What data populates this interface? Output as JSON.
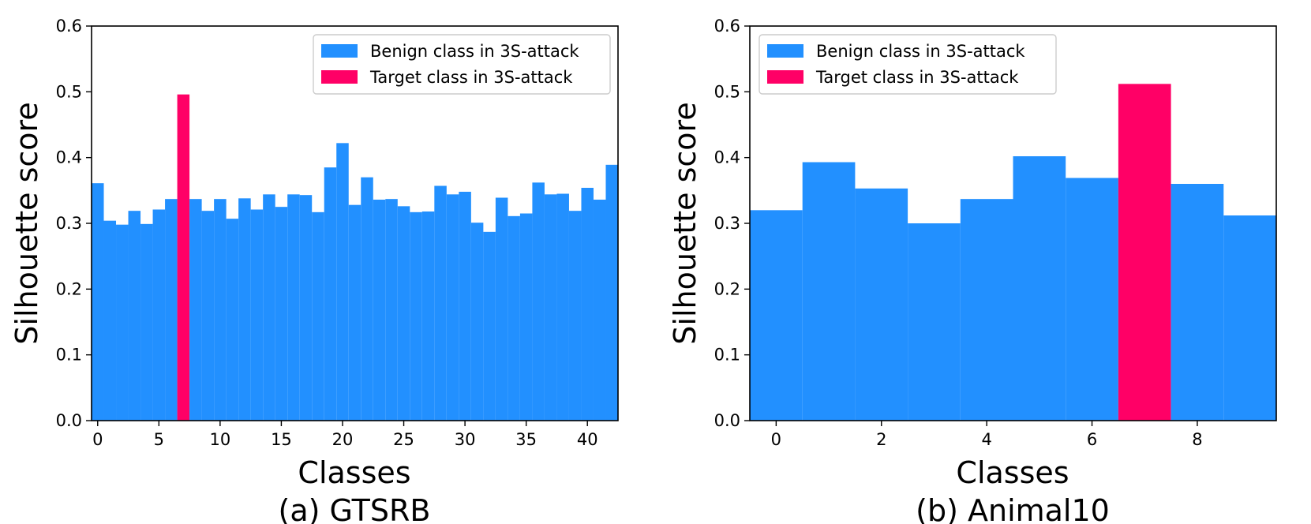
{
  "chart_data": [
    {
      "type": "bar",
      "caption": "(a) GTSRB",
      "xlabel": "Classes",
      "ylabel": "Silhouette score",
      "xlim": [
        -0.5,
        42.5
      ],
      "ylim": [
        0,
        0.6
      ],
      "xticks": [
        0,
        5,
        10,
        15,
        20,
        25,
        30,
        35,
        40
      ],
      "yticks": [
        0.0,
        0.1,
        0.2,
        0.3,
        0.4,
        0.5,
        0.6
      ],
      "target_class": 7,
      "categories": [
        0,
        1,
        2,
        3,
        4,
        5,
        6,
        7,
        8,
        9,
        10,
        11,
        12,
        13,
        14,
        15,
        16,
        17,
        18,
        19,
        20,
        21,
        22,
        23,
        24,
        25,
        26,
        27,
        28,
        29,
        30,
        31,
        32,
        33,
        34,
        35,
        36,
        37,
        38,
        39,
        40,
        41,
        42
      ],
      "values": [
        0.361,
        0.304,
        0.298,
        0.319,
        0.299,
        0.321,
        0.337,
        0.496,
        0.337,
        0.319,
        0.337,
        0.307,
        0.338,
        0.321,
        0.344,
        0.325,
        0.344,
        0.343,
        0.317,
        0.385,
        0.422,
        0.328,
        0.37,
        0.336,
        0.337,
        0.326,
        0.317,
        0.318,
        0.357,
        0.344,
        0.348,
        0.301,
        0.287,
        0.339,
        0.311,
        0.315,
        0.362,
        0.344,
        0.345,
        0.319,
        0.354,
        0.336,
        0.389
      ],
      "legend": [
        "Benign class in 3S-attack",
        "Target class in 3S-attack"
      ]
    },
    {
      "type": "bar",
      "caption": "(b) Animal10",
      "xlabel": "Classes",
      "ylabel": "Silhouette score",
      "xlim": [
        -0.5,
        9.5
      ],
      "ylim": [
        0,
        0.6
      ],
      "xticks": [
        0,
        2,
        4,
        6,
        8
      ],
      "yticks": [
        0.0,
        0.1,
        0.2,
        0.3,
        0.4,
        0.5,
        0.6
      ],
      "target_class": 7,
      "categories": [
        0,
        1,
        2,
        3,
        4,
        5,
        6,
        7,
        8,
        9
      ],
      "values": [
        0.32,
        0.393,
        0.353,
        0.3,
        0.337,
        0.402,
        0.369,
        0.512,
        0.36,
        0.312
      ],
      "legend": [
        "Benign class in 3S-attack",
        "Target class in 3S-attack"
      ]
    }
  ],
  "colors": {
    "benign": "#2290ff",
    "target": "#ff0066"
  }
}
